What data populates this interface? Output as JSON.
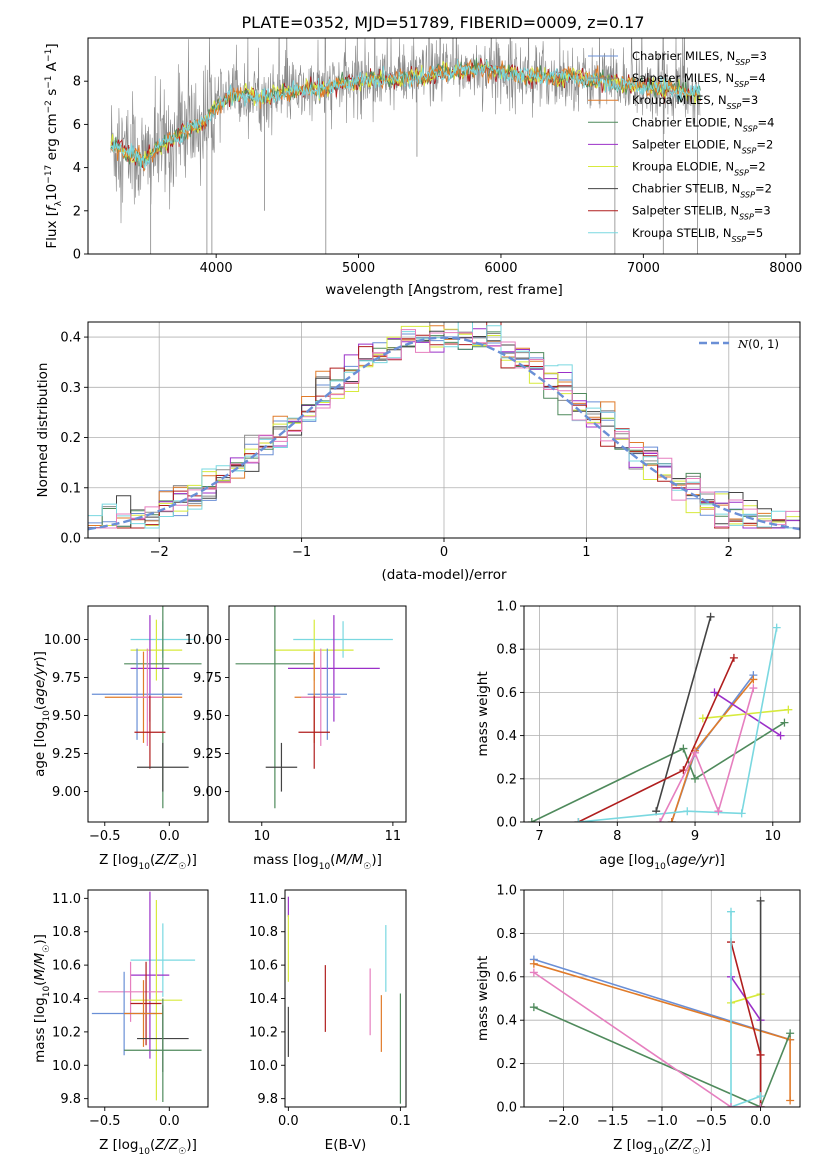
{
  "title": "PLATE=0352, MJD=51789, FIBERID=0009, z=0.17",
  "colors": {
    "Chabrier MILES": "#6a8fd6",
    "Salpeter MILES": "#8a8a8a",
    "Kroupa MILES": "#e07b2a",
    "Chabrier ELODIE": "#4f8a5c",
    "Salpeter ELODIE": "#9b30c8",
    "Kroupa ELODIE": "#d7ea3c",
    "Chabrier STELIB": "#444444",
    "Salpeter STELIB": "#b01e1e",
    "Kroupa STELIB": "#7ad8e0",
    "Pink": "#e67fbf"
  },
  "chart_data": [
    {
      "id": "spectrum",
      "type": "line",
      "title": "PLATE=0352, MJD=51789, FIBERID=0009, z=0.17",
      "xlabel": "wavelength [Angstrom, rest frame]",
      "ylabel": "Flux [f_λ 10^-17 erg cm^-2 s^-1 A^-1]",
      "xlim": [
        3100,
        8100
      ],
      "ylim": [
        0,
        10
      ],
      "xticks": [
        4000,
        5000,
        6000,
        7000,
        8000
      ],
      "yticks": [
        0,
        2,
        4,
        6,
        8
      ],
      "legend_position": "right",
      "legend": [
        {
          "label": "Chabrier MILES, N",
          "sub": "SSP",
          "suffix": "=3",
          "color": "Chabrier MILES"
        },
        {
          "label": "Salpeter MILES, N",
          "sub": "SSP",
          "suffix": "=4",
          "color": "Salpeter MILES"
        },
        {
          "label": "Kroupa MILES, N",
          "sub": "SSP",
          "suffix": "=3",
          "color": "Kroupa MILES"
        },
        {
          "label": "Chabrier ELODIE, N",
          "sub": "SSP",
          "suffix": "=4",
          "color": "Chabrier ELODIE"
        },
        {
          "label": "Salpeter ELODIE, N",
          "sub": "SSP",
          "suffix": "=2",
          "color": "Salpeter ELODIE"
        },
        {
          "label": "Kroupa ELODIE, N",
          "sub": "SSP",
          "suffix": "=2",
          "color": "Kroupa ELODIE"
        },
        {
          "label": "Chabrier STELIB, N",
          "sub": "SSP",
          "suffix": "=2",
          "color": "Chabrier STELIB"
        },
        {
          "label": "Salpeter STELIB, N",
          "sub": "SSP",
          "suffix": "=3",
          "color": "Salpeter STELIB"
        },
        {
          "label": "Kroupa STELIB, N",
          "sub": "SSP",
          "suffix": "=5",
          "color": "Kroupa STELIB"
        }
      ],
      "continuum": [
        [
          3260,
          5.1
        ],
        [
          3400,
          4.6
        ],
        [
          3500,
          4.3
        ],
        [
          3600,
          5.0
        ],
        [
          3700,
          5.3
        ],
        [
          3800,
          5.8
        ],
        [
          3900,
          6.0
        ],
        [
          4000,
          6.8
        ],
        [
          4100,
          7.3
        ],
        [
          4200,
          7.4
        ],
        [
          4300,
          7.2
        ],
        [
          4500,
          7.5
        ],
        [
          4700,
          7.6
        ],
        [
          4900,
          7.9
        ],
        [
          5100,
          8.1
        ],
        [
          5300,
          8.1
        ],
        [
          5500,
          8.3
        ],
        [
          5700,
          8.5
        ],
        [
          5900,
          8.6
        ],
        [
          6100,
          8.3
        ],
        [
          6300,
          8.2
        ],
        [
          6500,
          8.2
        ],
        [
          6700,
          8.0
        ],
        [
          6900,
          7.8
        ],
        [
          7100,
          7.7
        ],
        [
          7300,
          7.5
        ],
        [
          7400,
          7.4
        ]
      ],
      "absorption_dips": [
        [
          3540,
          0
        ],
        [
          3935,
          0
        ],
        [
          3970,
          0
        ],
        [
          4340,
          2
        ],
        [
          4770,
          0
        ],
        [
          5410,
          4.5
        ],
        [
          6800,
          0
        ],
        [
          7140,
          0
        ],
        [
          7380,
          0
        ]
      ]
    },
    {
      "id": "residuals",
      "type": "bar",
      "xlabel": "(data-model)/error",
      "ylabel": "Normed distribution",
      "xlim": [
        -2.5,
        2.5
      ],
      "ylim": [
        0,
        0.43
      ],
      "xticks": [
        -2,
        -1,
        0,
        1,
        2
      ],
      "yticks": [
        0.0,
        0.1,
        0.2,
        0.3,
        0.4
      ],
      "bin_width": 0.1,
      "legend": [
        {
          "label": "N(0, 1)",
          "color": "#6a8fd6",
          "style": "dashed"
        }
      ],
      "series": [
        {
          "color": "Chabrier MILES",
          "offset": 1
        },
        {
          "color": "Salpeter MILES",
          "offset": 2
        },
        {
          "color": "Kroupa MILES",
          "offset": 3
        },
        {
          "color": "Chabrier ELODIE",
          "offset": 4
        },
        {
          "color": "Salpeter ELODIE",
          "offset": 5
        },
        {
          "color": "Kroupa ELODIE",
          "offset": 6
        },
        {
          "color": "Chabrier STELIB",
          "offset": 7
        },
        {
          "color": "Salpeter STELIB",
          "offset": 8
        },
        {
          "color": "Kroupa STELIB",
          "offset": 9
        },
        {
          "color": "Pink",
          "offset": 10
        }
      ]
    },
    {
      "id": "age-vs-Z",
      "type": "scatter",
      "xlabel": "Z [log10(Z/Z☉)]",
      "ylabel": "age [log10(age/yr)]",
      "xlim": [
        -0.63,
        0.3
      ],
      "ylim": [
        8.8,
        10.22
      ],
      "xticks": [
        -0.5,
        0.0
      ],
      "yticks": [
        9.0,
        9.25,
        9.5,
        9.75,
        10.0
      ],
      "points": [
        {
          "color": "Kroupa STELIB",
          "x": -0.05,
          "xerr": 0.25,
          "y": 10.0,
          "yerr": 0.12
        },
        {
          "color": "Kroupa ELODIE",
          "x": -0.1,
          "xerr": 0.2,
          "y": 9.93,
          "yerr": 0.2
        },
        {
          "color": "Chabrier ELODIE",
          "x": -0.05,
          "xerr": 0.3,
          "y": 9.84,
          "yerr": 0.95
        },
        {
          "color": "Salpeter ELODIE",
          "x": -0.15,
          "xerr": 0.15,
          "y": 9.81,
          "yerr": 0.35
        },
        {
          "color": "Chabrier MILES",
          "x": -0.25,
          "xerr": 0.35,
          "y": 9.64,
          "yerr": 0.3
        },
        {
          "color": "Kroupa MILES",
          "x": -0.2,
          "xerr": 0.3,
          "y": 9.62,
          "yerr": 0.3
        },
        {
          "color": "Pink",
          "x": -0.17,
          "xerr": 0.12,
          "y": 9.62,
          "yerr": 0.32
        },
        {
          "color": "Salpeter STELIB",
          "x": -0.15,
          "xerr": 0.12,
          "y": 9.39,
          "yerr": 0.24
        },
        {
          "color": "Chabrier STELIB",
          "x": -0.05,
          "xerr": 0.2,
          "y": 9.16,
          "yerr": 0.16
        }
      ]
    },
    {
      "id": "age-vs-mass",
      "type": "scatter",
      "xlabel": "mass [log10(M/M☉)]",
      "ylabel": "",
      "xlim": [
        9.75,
        11.1
      ],
      "ylim": [
        8.8,
        10.22
      ],
      "xticks": [
        10,
        11
      ],
      "yticks": [
        9.0,
        9.25,
        9.5,
        9.75,
        10.0
      ],
      "points": [
        {
          "color": "Kroupa STELIB",
          "x": 10.62,
          "xerr": 0.38,
          "y": 10.0,
          "yerr": 0.12
        },
        {
          "color": "Kroupa ELODIE",
          "x": 10.4,
          "xerr": 0.3,
          "y": 9.93,
          "yerr": 0.2
        },
        {
          "color": "Chabrier ELODIE",
          "x": 10.1,
          "xerr": 0.3,
          "y": 9.84,
          "yerr": 0.95
        },
        {
          "color": "Salpeter ELODIE",
          "x": 10.55,
          "xerr": 0.35,
          "y": 9.81,
          "yerr": 0.35
        },
        {
          "color": "Chabrier MILES",
          "x": 10.5,
          "xerr": 0.15,
          "y": 9.64,
          "yerr": 0.3
        },
        {
          "color": "Kroupa MILES",
          "x": 10.4,
          "xerr": 0.15,
          "y": 9.62,
          "yerr": 0.3
        },
        {
          "color": "Pink",
          "x": 10.45,
          "xerr": 0.15,
          "y": 9.62,
          "yerr": 0.32
        },
        {
          "color": "Salpeter STELIB",
          "x": 10.4,
          "xerr": 0.12,
          "y": 9.39,
          "yerr": 0.24
        },
        {
          "color": "Chabrier STELIB",
          "x": 10.15,
          "xerr": 0.12,
          "y": 9.16,
          "yerr": 0.16
        }
      ]
    },
    {
      "id": "massweight-vs-age",
      "type": "line",
      "xlabel": "age [log10(age/yr)]",
      "ylabel": "mass weight",
      "xlim": [
        6.8,
        10.35
      ],
      "ylim": [
        0,
        1
      ],
      "xticks": [
        7,
        8,
        9,
        10
      ],
      "yticks": [
        0.0,
        0.2,
        0.4,
        0.6,
        0.8,
        1.0
      ],
      "series": [
        {
          "color": "Chabrier MILES",
          "points": [
            [
              8.7,
              0.0
            ],
            [
              9.0,
              0.32
            ],
            [
              9.75,
              0.68
            ]
          ]
        },
        {
          "color": "Kroupa MILES",
          "points": [
            [
              8.7,
              0.0
            ],
            [
              9.0,
              0.33
            ],
            [
              9.75,
              0.66
            ]
          ]
        },
        {
          "color": "Chabrier ELODIE",
          "points": [
            [
              6.9,
              0.0
            ],
            [
              8.85,
              0.34
            ],
            [
              9.0,
              0.2
            ],
            [
              10.15,
              0.46
            ]
          ]
        },
        {
          "color": "Salpeter ELODIE",
          "points": [
            [
              9.25,
              0.6
            ],
            [
              10.1,
              0.4
            ]
          ]
        },
        {
          "color": "Kroupa ELODIE",
          "points": [
            [
              9.1,
              0.48
            ],
            [
              10.2,
              0.52
            ]
          ]
        },
        {
          "color": "Chabrier STELIB",
          "points": [
            [
              8.5,
              0.05
            ],
            [
              9.2,
              0.95
            ]
          ]
        },
        {
          "color": "Salpeter STELIB",
          "points": [
            [
              7.5,
              0.0
            ],
            [
              8.85,
              0.24
            ],
            [
              9.5,
              0.76
            ]
          ]
        },
        {
          "color": "Kroupa STELIB",
          "points": [
            [
              7.5,
              0.0
            ],
            [
              8.9,
              0.05
            ],
            [
              9.6,
              0.04
            ],
            [
              10.05,
              0.9
            ]
          ]
        },
        {
          "color": "Pink",
          "points": [
            [
              8.55,
              0.0
            ],
            [
              9.0,
              0.32
            ],
            [
              9.3,
              0.05
            ],
            [
              9.75,
              0.62
            ]
          ]
        }
      ]
    },
    {
      "id": "mass-vs-Z",
      "type": "scatter",
      "xlabel": "Z [log10(Z/Z☉)]",
      "ylabel": "mass [log10(M/M☉)]",
      "xlim": [
        -0.63,
        0.3
      ],
      "ylim": [
        9.75,
        11.05
      ],
      "xticks": [
        -0.5,
        0.0
      ],
      "yticks": [
        9.8,
        10.0,
        10.2,
        10.4,
        10.6,
        10.8,
        11.0
      ],
      "points": [
        {
          "color": "Kroupa STELIB",
          "x": -0.05,
          "xerr": 0.25,
          "y": 10.63,
          "yerr": 0.22
        },
        {
          "color": "Salpeter ELODIE",
          "x": -0.15,
          "xerr": 0.15,
          "y": 10.54,
          "yerr": 0.5
        },
        {
          "color": "Pink",
          "x": -0.3,
          "xerr": 0.25,
          "y": 10.44,
          "yerr": 0.18
        },
        {
          "color": "Kroupa ELODIE",
          "x": -0.1,
          "xerr": 0.2,
          "y": 10.39,
          "yerr": 0.6
        },
        {
          "color": "Salpeter STELIB",
          "x": -0.18,
          "xerr": 0.12,
          "y": 10.37,
          "yerr": 0.25
        },
        {
          "color": "Chabrier MILES",
          "x": -0.35,
          "xerr": 0.25,
          "y": 10.31,
          "yerr": 0.25
        },
        {
          "color": "Kroupa MILES",
          "x": -0.2,
          "xerr": 0.15,
          "y": 10.31,
          "yerr": 0.2
        },
        {
          "color": "Chabrier STELIB",
          "x": -0.05,
          "xerr": 0.2,
          "y": 10.16,
          "yerr": 0.2
        },
        {
          "color": "Chabrier ELODIE",
          "x": -0.05,
          "xerr": 0.3,
          "y": 10.09,
          "yerr": 0.31
        }
      ]
    },
    {
      "id": "mass-vs-EBV",
      "type": "scatter",
      "xlabel": "E(B-V)",
      "ylabel": "",
      "xlim": [
        -0.003,
        0.105
      ],
      "ylim": [
        9.75,
        11.05
      ],
      "xticks": [
        0.0,
        0.1
      ],
      "yticks": [
        9.8,
        10.0,
        10.2,
        10.4,
        10.6,
        10.8,
        11.0
      ],
      "points": [
        {
          "color": "Salpeter ELODIE",
          "x": 0.0,
          "y": 10.95,
          "yerr": 0.06
        },
        {
          "color": "Kroupa ELODIE",
          "x": 0.0,
          "y": 10.7,
          "yerr": 0.2
        },
        {
          "color": "Chabrier STELIB",
          "x": 0.0,
          "y": 10.2,
          "yerr": 0.15
        },
        {
          "color": "Salpeter STELIB",
          "x": 0.033,
          "y": 10.4,
          "yerr": 0.2
        },
        {
          "color": "Pink",
          "x": 0.073,
          "y": 10.38,
          "yerr": 0.2
        },
        {
          "color": "Kroupa MILES",
          "x": 0.083,
          "y": 10.25,
          "yerr": 0.17
        },
        {
          "color": "Kroupa STELIB",
          "x": 0.087,
          "y": 10.64,
          "yerr": 0.2
        },
        {
          "color": "Chabrier ELODIE",
          "x": 0.1,
          "y": 10.1,
          "yerr": 0.33
        }
      ]
    },
    {
      "id": "massweight-vs-Z",
      "type": "line",
      "xlabel": "Z [log10(Z/Z☉)]",
      "ylabel": "mass weight",
      "xlim": [
        -2.4,
        0.4
      ],
      "ylim": [
        0,
        1
      ],
      "xticks": [
        -2.0,
        -1.5,
        -1.0,
        -0.5,
        0.0
      ],
      "yticks": [
        0.0,
        0.2,
        0.4,
        0.6,
        0.8,
        1.0
      ],
      "series": [
        {
          "color": "Chabrier MILES",
          "points": [
            [
              -2.3,
              0.68
            ],
            [
              0.3,
              0.31
            ]
          ]
        },
        {
          "color": "Kroupa MILES",
          "points": [
            [
              -2.3,
              0.66
            ],
            [
              0.3,
              0.31
            ],
            [
              0.3,
              0.03
            ]
          ]
        },
        {
          "color": "Chabrier ELODIE",
          "points": [
            [
              -2.3,
              0.46
            ],
            [
              0.0,
              0.0
            ],
            [
              0.3,
              0.34
            ]
          ]
        },
        {
          "color": "Salpeter ELODIE",
          "points": [
            [
              -0.3,
              0.6
            ],
            [
              0.0,
              0.4
            ]
          ]
        },
        {
          "color": "Kroupa ELODIE",
          "points": [
            [
              -0.3,
              0.48
            ],
            [
              0.0,
              0.52
            ]
          ]
        },
        {
          "color": "Chabrier STELIB",
          "points": [
            [
              0.0,
              0.95
            ],
            [
              0.0,
              0.0
            ]
          ]
        },
        {
          "color": "Salpeter STELIB",
          "points": [
            [
              -0.3,
              0.76
            ],
            [
              0.0,
              0.24
            ],
            [
              0.0,
              0.0
            ]
          ]
        },
        {
          "color": "Kroupa STELIB",
          "points": [
            [
              -0.3,
              0.9
            ],
            [
              -0.3,
              0.0
            ],
            [
              0.0,
              0.05
            ]
          ]
        },
        {
          "color": "Pink",
          "points": [
            [
              -2.3,
              0.62
            ],
            [
              -0.3,
              0.0
            ],
            [
              0.0,
              0.0
            ]
          ]
        }
      ]
    }
  ]
}
